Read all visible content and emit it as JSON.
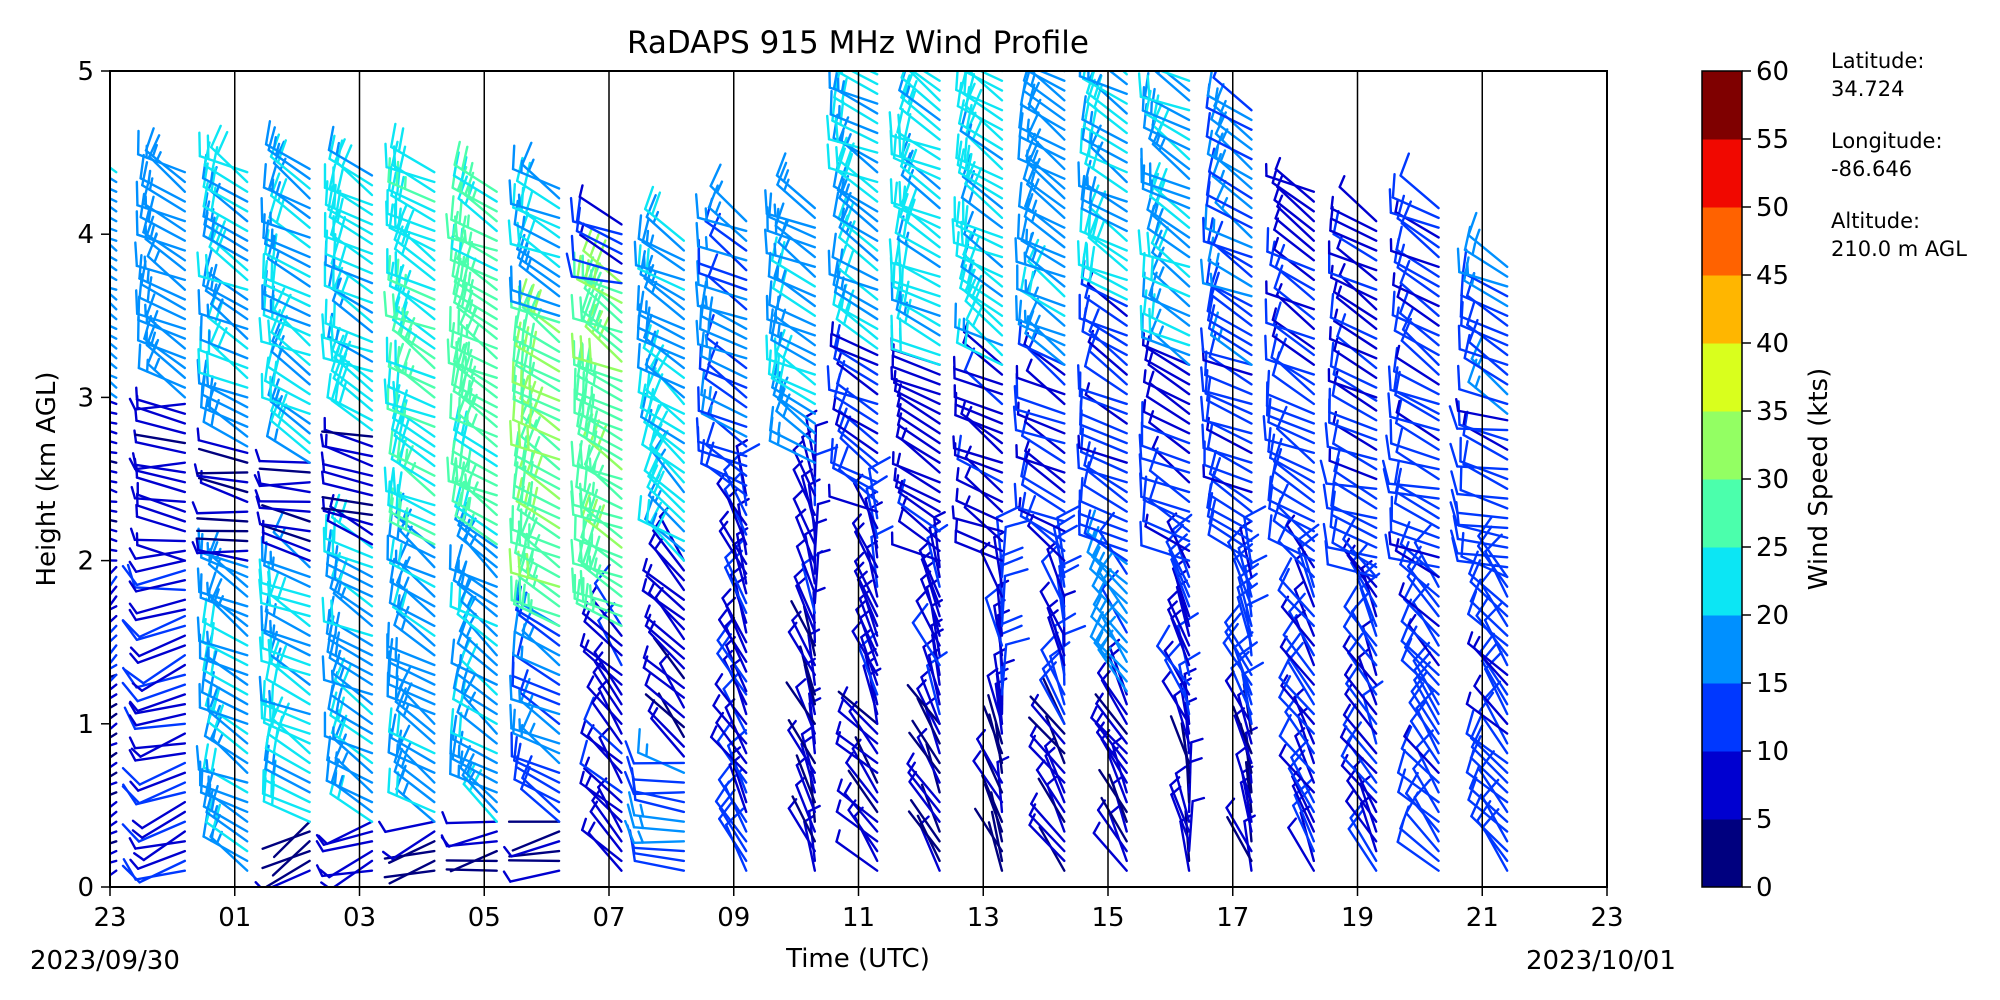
{
  "chart_data": {
    "type": "wind-barb-profile",
    "title": "RaDAPS 915 MHz Wind Profile",
    "xlabel": "Time (UTC)",
    "ylabel": "Height (km AGL)",
    "xlim_hours": [
      0,
      24
    ],
    "ylim": [
      0,
      5
    ],
    "x_tick_labels": [
      "23",
      "01",
      "03",
      "05",
      "07",
      "09",
      "11",
      "13",
      "15",
      "17",
      "19",
      "21",
      "23"
    ],
    "x_tick_hours": [
      0,
      2,
      4,
      6,
      8,
      10,
      12,
      14,
      16,
      18,
      20,
      22,
      24
    ],
    "y_ticks": [
      0,
      1,
      2,
      3,
      4,
      5
    ],
    "start_date_label": "2023/09/30",
    "end_date_label": "2023/10/01",
    "vertical_gridlines": true,
    "colorbar": {
      "label": "Wind Speed (kts)",
      "ticks": [
        0,
        5,
        10,
        15,
        20,
        25,
        30,
        35,
        40,
        45,
        50,
        55,
        60
      ],
      "colors": [
        "#00007f",
        "#0000d0",
        "#0038ff",
        "#0090ff",
        "#0ce6f4",
        "#4bffac",
        "#93ff63",
        "#d9ff1d",
        "#ffb600",
        "#ff6200",
        "#f10800",
        "#7f0000"
      ]
    },
    "site": {
      "latitude_label": "Latitude:",
      "latitude": "34.724",
      "longitude_label": "Longitude:",
      "longitude": "-86.646",
      "altitude_label": "Altitude:",
      "altitude": "210.0 m AGL"
    },
    "profiles": [
      {
        "hour": 0.1,
        "low": [
          [
            0.1,
            1.3,
            5,
            240
          ],
          [
            1.3,
            2.0,
            10,
            230
          ],
          [
            2.0,
            3.0,
            7,
            280
          ],
          [
            3.0,
            4.4,
            18,
            300
          ]
        ]
      },
      {
        "hour": 1.2,
        "low": [
          [
            0.1,
            1.7,
            10,
            250
          ],
          [
            1.7,
            2.0,
            8,
            260
          ],
          [
            2.0,
            3.0,
            7,
            275
          ],
          [
            3.0,
            4.4,
            18,
            300
          ]
        ]
      },
      {
        "hour": 2.2,
        "low": [
          [
            0.1,
            2.0,
            18,
            300
          ],
          [
            2.0,
            2.7,
            6,
            280
          ],
          [
            2.7,
            4.4,
            20,
            300
          ]
        ]
      },
      {
        "hour": 3.2,
        "low": [
          [
            0.1,
            0.4,
            6,
            240
          ],
          [
            0.4,
            2.0,
            20,
            300
          ],
          [
            2.0,
            2.6,
            6,
            280
          ],
          [
            2.6,
            4.4,
            20,
            300
          ]
        ]
      },
      {
        "hour": 4.2,
        "low": [
          [
            0.1,
            0.4,
            6,
            250
          ],
          [
            0.4,
            2.1,
            18,
            300
          ],
          [
            2.1,
            2.8,
            6,
            290
          ],
          [
            2.8,
            4.4,
            22,
            300
          ]
        ]
      },
      {
        "hour": 5.2,
        "low": [
          [
            0.1,
            0.4,
            6,
            250
          ],
          [
            0.4,
            2.1,
            18,
            305
          ],
          [
            2.1,
            4.4,
            24,
            300
          ]
        ]
      },
      {
        "hour": 6.2,
        "low": [
          [
            0.1,
            0.4,
            6,
            260
          ],
          [
            0.4,
            2.1,
            18,
            305
          ],
          [
            2.1,
            4.3,
            27,
            300
          ]
        ]
      },
      {
        "hour": 7.2,
        "low": [
          [
            0.1,
            0.4,
            5,
            260
          ],
          [
            0.4,
            1.6,
            15,
            300
          ],
          [
            1.6,
            3.5,
            28,
            300
          ],
          [
            3.5,
            4.3,
            20,
            300
          ]
        ]
      },
      {
        "hour": 8.2,
        "low": [
          [
            0.1,
            1.6,
            8,
            320
          ],
          [
            1.6,
            3.7,
            28,
            300
          ],
          [
            3.7,
            4.1,
            10,
            290
          ]
        ]
      },
      {
        "hour": 9.2,
        "low": [
          [
            0.1,
            0.8,
            15,
            280
          ],
          [
            0.8,
            2.0,
            6,
            320
          ],
          [
            2.0,
            3.0,
            20,
            310
          ],
          [
            3.0,
            4.0,
            18,
            300
          ]
        ]
      },
      {
        "hour": 10.2,
        "low": [
          [
            0.1,
            1.2,
            10,
            330
          ],
          [
            1.2,
            2.4,
            8,
            340
          ],
          [
            2.4,
            4.1,
            15,
            300
          ]
        ]
      },
      {
        "hour": 11.3,
        "low": [
          [
            0.1,
            1.5,
            6,
            340
          ],
          [
            1.5,
            2.6,
            8,
            350
          ],
          [
            2.6,
            4.2,
            18,
            300
          ]
        ]
      },
      {
        "hour": 12.3,
        "low": [
          [
            0.1,
            1.0,
            6,
            320
          ],
          [
            1.0,
            2.3,
            8,
            340
          ],
          [
            2.3,
            3.3,
            10,
            300
          ],
          [
            3.3,
            5.0,
            20,
            300
          ]
        ]
      },
      {
        "hour": 13.3,
        "low": [
          [
            0.1,
            1.0,
            5,
            330
          ],
          [
            1.0,
            2.0,
            8,
            340
          ],
          [
            2.0,
            3.2,
            8,
            300
          ],
          [
            3.2,
            5.0,
            22,
            300
          ]
        ]
      },
      {
        "hour": 14.3,
        "low": [
          [
            0.1,
            1.0,
            5,
            340
          ],
          [
            1.0,
            2.0,
            10,
            350
          ],
          [
            2.0,
            3.2,
            8,
            300
          ],
          [
            3.2,
            5.0,
            22,
            300
          ]
        ]
      },
      {
        "hour": 15.3,
        "low": [
          [
            0.1,
            1.0,
            6,
            330
          ],
          [
            1.0,
            2.0,
            10,
            345
          ],
          [
            2.0,
            3.2,
            10,
            300
          ],
          [
            3.2,
            5.0,
            18,
            300
          ]
        ]
      },
      {
        "hour": 16.3,
        "low": [
          [
            0.1,
            1.2,
            6,
            330
          ],
          [
            1.2,
            2.0,
            16,
            320
          ],
          [
            2.0,
            3.6,
            12,
            300
          ],
          [
            3.6,
            5.0,
            20,
            300
          ]
        ]
      },
      {
        "hour": 17.3,
        "low": [
          [
            0.1,
            1.0,
            6,
            350
          ],
          [
            1.0,
            2.0,
            10,
            335
          ],
          [
            2.0,
            3.2,
            10,
            300
          ],
          [
            3.2,
            5.0,
            18,
            300
          ]
        ]
      },
      {
        "hour": 18.3,
        "low": [
          [
            0.1,
            1.0,
            6,
            340
          ],
          [
            1.0,
            2.0,
            12,
            340
          ],
          [
            2.0,
            3.2,
            12,
            300
          ],
          [
            3.2,
            4.8,
            15,
            300
          ]
        ]
      },
      {
        "hour": 19.3,
        "low": [
          [
            0.1,
            2.0,
            10,
            330
          ],
          [
            2.0,
            3.3,
            12,
            300
          ],
          [
            3.3,
            4.3,
            10,
            300
          ]
        ]
      },
      {
        "hour": 20.3,
        "low": [
          [
            0.1,
            1.9,
            10,
            330
          ],
          [
            1.9,
            3.0,
            12,
            290
          ],
          [
            3.0,
            4.1,
            10,
            300
          ]
        ]
      },
      {
        "hour": 21.3,
        "low": [
          [
            0.1,
            1.9,
            12,
            320
          ],
          [
            1.9,
            2.9,
            12,
            290
          ],
          [
            2.9,
            4.2,
            12,
            300
          ]
        ]
      },
      {
        "hour": 22.4,
        "low": [
          [
            0.1,
            1.9,
            12,
            320
          ],
          [
            1.9,
            2.9,
            12,
            285
          ],
          [
            2.9,
            3.8,
            14,
            300
          ]
        ]
      }
    ]
  }
}
